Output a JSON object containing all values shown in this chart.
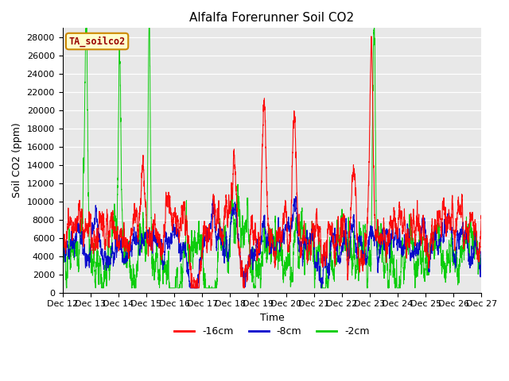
{
  "title": "Alfalfa Forerunner Soil CO2",
  "xlabel": "Time",
  "ylabel": "Soil CO2 (ppm)",
  "annotation": "TA_soilco2",
  "ylim": [
    0,
    29000
  ],
  "yticks": [
    0,
    2000,
    4000,
    6000,
    8000,
    10000,
    12000,
    14000,
    16000,
    18000,
    20000,
    22000,
    24000,
    26000,
    28000
  ],
  "xtick_labels": [
    "Dec 12",
    "Dec 13",
    "Dec 14",
    "Dec 15",
    "Dec 16",
    "Dec 17",
    "Dec 18",
    "Dec 19",
    "Dec 20",
    "Dec 21",
    "Dec 22",
    "Dec 23",
    "Dec 24",
    "Dec 25",
    "Dec 26",
    "Dec 27"
  ],
  "color_16cm": "#ff0000",
  "color_8cm": "#0000cc",
  "color_2cm": "#00cc00",
  "legend_labels": [
    "-16cm",
    "-8cm",
    "-2cm"
  ],
  "fig_bg_color": "#ffffff",
  "plot_bg_color": "#e8e8e8",
  "annotation_bg": "#ffffcc",
  "annotation_border": "#cc8800",
  "annotation_text_color": "#990000",
  "title_fontsize": 11,
  "axis_label_fontsize": 9,
  "tick_fontsize": 8,
  "n_points": 5000,
  "seed": 42
}
